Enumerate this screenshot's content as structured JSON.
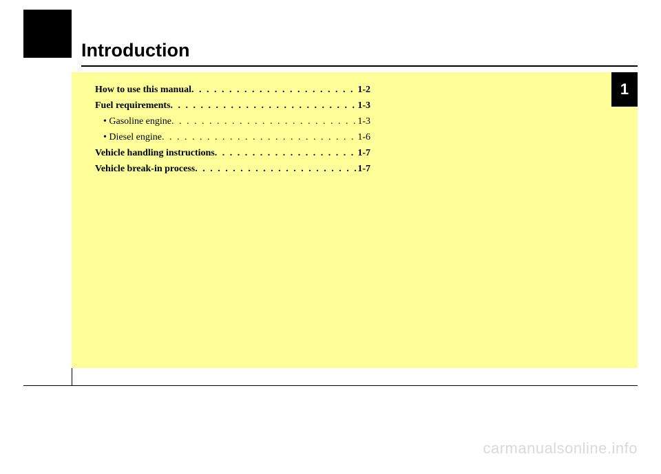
{
  "colors": {
    "page_bg": "#ffffff",
    "black": "#000000",
    "content_bg": "#ffff99",
    "watermark": "#d9d9d9"
  },
  "title": "Introduction",
  "tab": "1",
  "toc": [
    {
      "label": "How to use this manual",
      "page": "1-2",
      "bold": true,
      "sub": false
    },
    {
      "label": "Fuel requirements",
      "page": "1-3",
      "bold": true,
      "sub": false
    },
    {
      "label": "• Gasoline engine",
      "page": "1-3",
      "bold": false,
      "sub": true
    },
    {
      "label": "• Diesel engine",
      "page": "1-6",
      "bold": false,
      "sub": true
    },
    {
      "label": "Vehicle handling instructions",
      "page": "1-7",
      "bold": true,
      "sub": false
    },
    {
      "label": "Vehicle break-in process",
      "page": "1-7",
      "bold": true,
      "sub": false
    }
  ],
  "watermark": "carmanualsonline.info",
  "dotfill": ". . . . . . . . . . . . . . . . . . . . . . . . . . . . . . . . . . . . . . . ."
}
